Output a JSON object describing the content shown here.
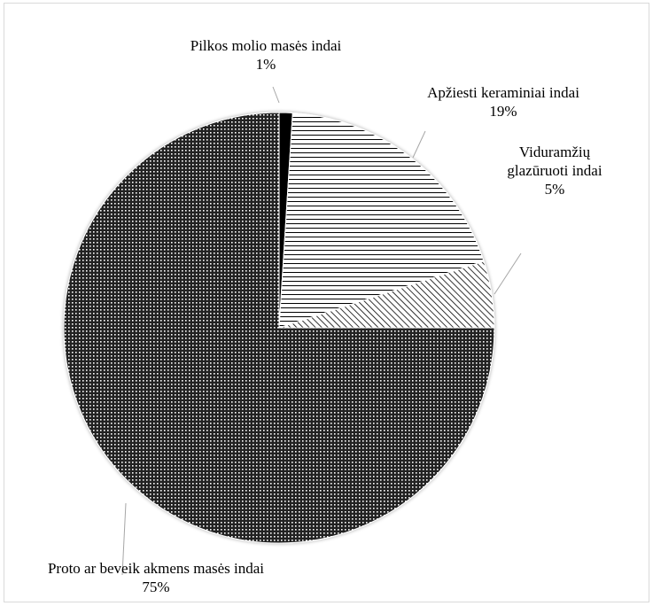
{
  "chart_data": {
    "type": "pie",
    "slices": [
      {
        "label_lines": [
          "Pilkos molio masės indai"
        ],
        "pct_label": "1%",
        "value": 1,
        "pattern": "solid-black"
      },
      {
        "label_lines": [
          "Apžiesti keraminiai indai"
        ],
        "pct_label": "19%",
        "value": 19,
        "pattern": "horizontal-lines"
      },
      {
        "label_lines": [
          "Viduramžių",
          "glazūruoti indai"
        ],
        "pct_label": "5%",
        "value": 5,
        "pattern": "diagonal-lines"
      },
      {
        "label_lines": [
          "Proto ar beveik akmens masės indai"
        ],
        "pct_label": "75%",
        "value": 75,
        "pattern": "dotted-grid"
      }
    ],
    "start_angle": "12 o'clock",
    "direction": "clockwise",
    "legend": "none",
    "data_labels": "outside with leader lines"
  }
}
